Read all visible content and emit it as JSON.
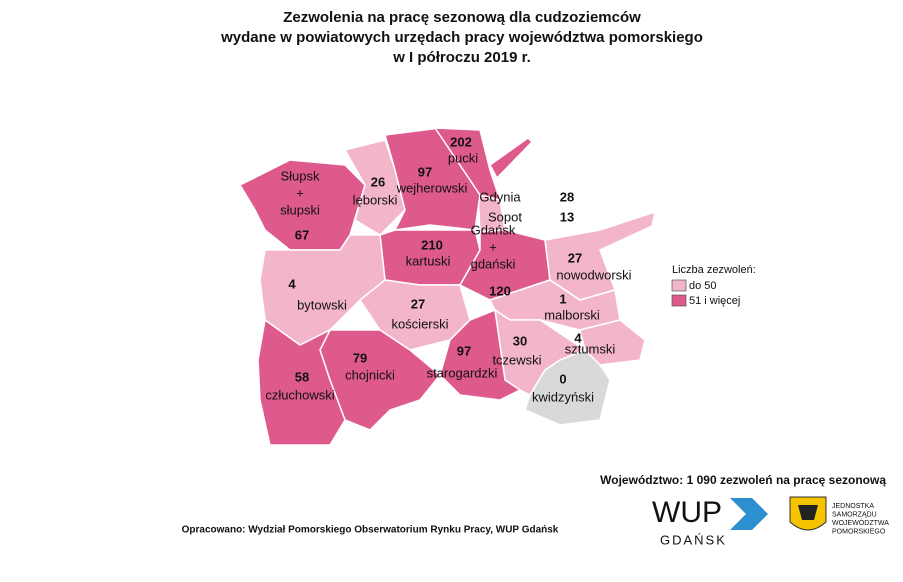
{
  "map": {
    "title": [
      "Zezwolenia na pracę sezonową dla cudzoziemców",
      "wydane w powiatowych urzędach pracy województwa pomorskiego",
      "w I półroczu 2019 r."
    ],
    "regions": [
      {
        "name": [
          "Słupsk",
          "+",
          "słupski"
        ],
        "value": 67,
        "color": "#de5a8c"
      },
      {
        "name": [
          "lęborski"
        ],
        "value": 26,
        "color": "#f3b5ca"
      },
      {
        "name": [
          "wejherowski"
        ],
        "value": 97,
        "color": "#de5a8c"
      },
      {
        "name": [
          "pucki"
        ],
        "value": 202,
        "color": "#de5a8c"
      },
      {
        "name": [
          "Gdańsk",
          "+",
          "gdański"
        ],
        "value": 120,
        "color": "#de5a8c"
      },
      {
        "name": [
          "kartuski"
        ],
        "value": 210,
        "color": "#de5a8c"
      },
      {
        "name": [
          "nowodworski"
        ],
        "value": 27,
        "color": "#f3b5ca"
      },
      {
        "name": [
          "bytowski"
        ],
        "value": 4,
        "color": "#f3b5ca"
      },
      {
        "name": [
          "kościerski"
        ],
        "value": 27,
        "color": "#f3b5ca"
      },
      {
        "name": [
          "malborski"
        ],
        "value": 1,
        "color": "#f3b5ca"
      },
      {
        "name": [
          "sztumski"
        ],
        "value": 4,
        "color": "#f3b5ca"
      },
      {
        "name": [
          "tczewski"
        ],
        "value": 30,
        "color": "#f3b5ca"
      },
      {
        "name": [
          "starogardzki"
        ],
        "value": 97,
        "color": "#de5a8c"
      },
      {
        "name": [
          "chojnicki"
        ],
        "value": 79,
        "color": "#de5a8c"
      },
      {
        "name": [
          "człuchowski"
        ],
        "value": 58,
        "color": "#de5a8c"
      },
      {
        "name": [
          "kwidzyński"
        ],
        "value": 0,
        "color": "#d9d9d9"
      }
    ],
    "cities": [
      {
        "name": "Gdynia",
        "value": 28
      },
      {
        "name": "Sopot",
        "value": 13
      }
    ],
    "legend": {
      "title": "Liczba zezwoleń:",
      "items": [
        {
          "label": "do 50",
          "color": "#f3b5ca"
        },
        {
          "label": "51 i więcej",
          "color": "#de5a8c"
        }
      ]
    },
    "total": "Województwo: 1 090 zezwoleń na pracę sezonową",
    "source": "Opracowano: Wydział Pomorskiego Obserwatorium Rynku Pracy, WUP Gdańsk",
    "logo_wup": [
      "WUP",
      "GDAŃSK"
    ],
    "logo_region": [
      "JEDNOSTKA",
      "SAMORZĄDU",
      "WOJEWÓDZTWA",
      "POMORSKIEGO"
    ]
  }
}
